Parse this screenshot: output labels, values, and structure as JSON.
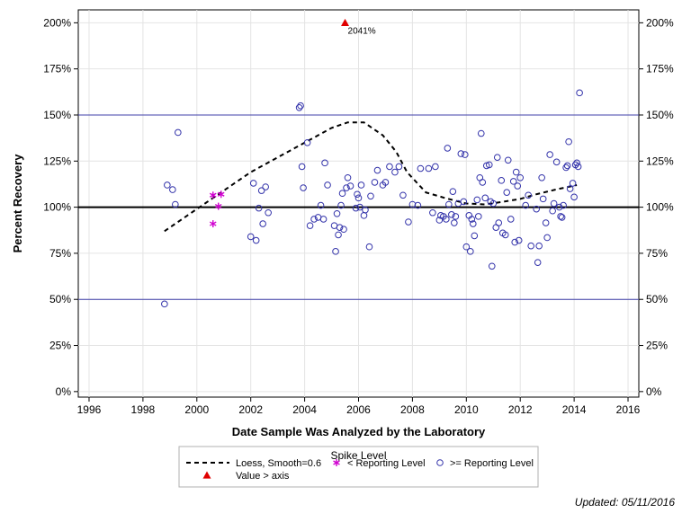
{
  "chart_data": {
    "type": "scatter",
    "xlabel": "Date Sample Was Analyzed by the Laboratory",
    "ylabel": "Percent Recovery",
    "xlim": [
      1995.6,
      2016.4
    ],
    "ylim": [
      -3,
      207
    ],
    "x_ticks": [
      1996,
      1998,
      2000,
      2002,
      2004,
      2006,
      2008,
      2010,
      2012,
      2014,
      2016
    ],
    "y_ticks": [
      0,
      25,
      50,
      75,
      100,
      125,
      150,
      175,
      200
    ],
    "y_tick_suffix": "%",
    "reference_lines": [
      {
        "y": 50,
        "color": "#3f3fa8",
        "style": "thin"
      },
      {
        "y": 100,
        "color": "#000000",
        "style": "thick"
      },
      {
        "y": 150,
        "color": "#3f3fa8",
        "style": "thin"
      }
    ],
    "legend": {
      "title": "Spike Level",
      "placement": "bottom",
      "items": [
        {
          "label": "Loess, Smooth=0.6",
          "symbol": "dash-line",
          "color": "#000000"
        },
        {
          "label": "< Reporting Level",
          "symbol": "asterisk",
          "color": "#d000d0"
        },
        {
          "label": ">= Reporting Level",
          "symbol": "circle",
          "color": "#3333aa"
        },
        {
          "label": "Value > axis",
          "symbol": "triangle",
          "color": "#e00000"
        }
      ]
    },
    "series": [
      {
        "name": "Loess, Smooth=0.6",
        "kind": "line",
        "color": "#000000",
        "points": [
          [
            1998.8,
            87
          ],
          [
            1999.5,
            94
          ],
          [
            2000.3,
            102
          ],
          [
            2001.1,
            110
          ],
          [
            2002.0,
            119
          ],
          [
            2003.0,
            127
          ],
          [
            2004.0,
            135
          ],
          [
            2005.0,
            143
          ],
          [
            2005.6,
            146
          ],
          [
            2006.2,
            146
          ],
          [
            2006.9,
            139
          ],
          [
            2007.4,
            130
          ],
          [
            2007.8,
            119
          ],
          [
            2008.5,
            108
          ],
          [
            2009.2,
            105
          ],
          [
            2010.0,
            102
          ],
          [
            2010.7,
            101.5
          ],
          [
            2011.4,
            103
          ],
          [
            2012.0,
            104.5
          ],
          [
            2012.6,
            107
          ],
          [
            2013.3,
            109.5
          ],
          [
            2014.1,
            112
          ]
        ]
      },
      {
        "name": "< Reporting Level",
        "kind": "asterisk",
        "color": "#d000d0",
        "points": [
          [
            2000.6,
            106.5
          ],
          [
            2000.6,
            91
          ],
          [
            2000.8,
            100.5
          ],
          [
            2000.9,
            107
          ]
        ]
      },
      {
        "name": ">= Reporting Level",
        "kind": "circle",
        "color": "#3333aa",
        "points": [
          [
            1998.8,
            47.5
          ],
          [
            1998.9,
            112
          ],
          [
            1999.1,
            109.5
          ],
          [
            1999.2,
            101.5
          ],
          [
            1999.3,
            140.5
          ],
          [
            2002.0,
            84
          ],
          [
            2002.1,
            113
          ],
          [
            2002.2,
            82
          ],
          [
            2002.3,
            99.5
          ],
          [
            2002.4,
            109
          ],
          [
            2002.45,
            91
          ],
          [
            2002.55,
            111
          ],
          [
            2002.65,
            97
          ],
          [
            2003.8,
            154
          ],
          [
            2003.85,
            155
          ],
          [
            2003.9,
            122
          ],
          [
            2003.95,
            110.5
          ],
          [
            2004.1,
            135
          ],
          [
            2004.2,
            90
          ],
          [
            2004.35,
            93.5
          ],
          [
            2004.5,
            94.5
          ],
          [
            2004.6,
            101
          ],
          [
            2004.7,
            93.5
          ],
          [
            2004.75,
            124
          ],
          [
            2004.85,
            112
          ],
          [
            2005.1,
            90
          ],
          [
            2005.15,
            76
          ],
          [
            2005.2,
            96.5
          ],
          [
            2005.25,
            85
          ],
          [
            2005.3,
            89
          ],
          [
            2005.35,
            101
          ],
          [
            2005.4,
            107.5
          ],
          [
            2005.45,
            88
          ],
          [
            2005.55,
            110.5
          ],
          [
            2005.6,
            116
          ],
          [
            2005.7,
            111.5
          ],
          [
            2005.9,
            99.5
          ],
          [
            2005.95,
            107
          ],
          [
            2006.0,
            105
          ],
          [
            2006.05,
            100
          ],
          [
            2006.1,
            112
          ],
          [
            2006.2,
            95.5
          ],
          [
            2006.25,
            98.5
          ],
          [
            2006.4,
            78.5
          ],
          [
            2006.45,
            106
          ],
          [
            2006.6,
            113.5
          ],
          [
            2006.7,
            120
          ],
          [
            2006.9,
            112
          ],
          [
            2007.0,
            113.5
          ],
          [
            2007.15,
            122
          ],
          [
            2007.35,
            119
          ],
          [
            2007.5,
            122
          ],
          [
            2007.65,
            106.5
          ],
          [
            2007.85,
            92
          ],
          [
            2008.0,
            101.5
          ],
          [
            2008.2,
            101
          ],
          [
            2008.3,
            121
          ],
          [
            2008.6,
            121
          ],
          [
            2008.75,
            97
          ],
          [
            2008.85,
            122
          ],
          [
            2009.0,
            93
          ],
          [
            2009.05,
            95.5
          ],
          [
            2009.15,
            95
          ],
          [
            2009.25,
            93.5
          ],
          [
            2009.3,
            132
          ],
          [
            2009.35,
            101.5
          ],
          [
            2009.45,
            96
          ],
          [
            2009.5,
            108.5
          ],
          [
            2009.55,
            91.5
          ],
          [
            2009.6,
            95
          ],
          [
            2009.7,
            102
          ],
          [
            2009.8,
            129
          ],
          [
            2009.9,
            103
          ],
          [
            2009.95,
            128.5
          ],
          [
            2010.0,
            78.5
          ],
          [
            2010.1,
            95.5
          ],
          [
            2010.15,
            76
          ],
          [
            2010.2,
            93.5
          ],
          [
            2010.25,
            91
          ],
          [
            2010.3,
            84.5
          ],
          [
            2010.4,
            104
          ],
          [
            2010.45,
            95
          ],
          [
            2010.5,
            116
          ],
          [
            2010.55,
            140
          ],
          [
            2010.6,
            113.5
          ],
          [
            2010.7,
            105
          ],
          [
            2010.75,
            122.5
          ],
          [
            2010.85,
            123
          ],
          [
            2010.9,
            103
          ],
          [
            2010.95,
            68
          ],
          [
            2011.0,
            102
          ],
          [
            2011.1,
            89
          ],
          [
            2011.15,
            127
          ],
          [
            2011.2,
            91.5
          ],
          [
            2011.3,
            114.5
          ],
          [
            2011.35,
            86
          ],
          [
            2011.45,
            85
          ],
          [
            2011.5,
            108
          ],
          [
            2011.55,
            125.5
          ],
          [
            2011.65,
            93.5
          ],
          [
            2011.75,
            114
          ],
          [
            2011.8,
            81
          ],
          [
            2011.85,
            119
          ],
          [
            2011.9,
            111.5
          ],
          [
            2011.95,
            82
          ],
          [
            2012.0,
            116
          ],
          [
            2012.2,
            101
          ],
          [
            2012.3,
            106.5
          ],
          [
            2012.4,
            79
          ],
          [
            2012.6,
            99
          ],
          [
            2012.65,
            70
          ],
          [
            2012.7,
            79
          ],
          [
            2012.8,
            116
          ],
          [
            2012.85,
            104.5
          ],
          [
            2012.95,
            91.5
          ],
          [
            2013.0,
            83.5
          ],
          [
            2013.1,
            128.5
          ],
          [
            2013.2,
            98
          ],
          [
            2013.25,
            102
          ],
          [
            2013.35,
            124.5
          ],
          [
            2013.45,
            100
          ],
          [
            2013.5,
            95
          ],
          [
            2013.55,
            94.5
          ],
          [
            2013.6,
            101
          ],
          [
            2013.7,
            121.5
          ],
          [
            2013.75,
            122.5
          ],
          [
            2013.8,
            135.5
          ],
          [
            2013.85,
            110
          ],
          [
            2013.95,
            113
          ],
          [
            2014.0,
            105.5
          ],
          [
            2014.05,
            123
          ],
          [
            2014.1,
            124
          ],
          [
            2014.15,
            122
          ],
          [
            2014.2,
            162
          ]
        ]
      },
      {
        "name": "Value > axis",
        "kind": "triangle",
        "color": "#e00000",
        "points": [
          [
            2005.5,
            200
          ]
        ]
      }
    ],
    "annotations": [
      {
        "x": 2005.5,
        "y": 200,
        "text": "2041%"
      }
    ]
  },
  "footer": {
    "updated": "Updated: 05/11/2016"
  }
}
